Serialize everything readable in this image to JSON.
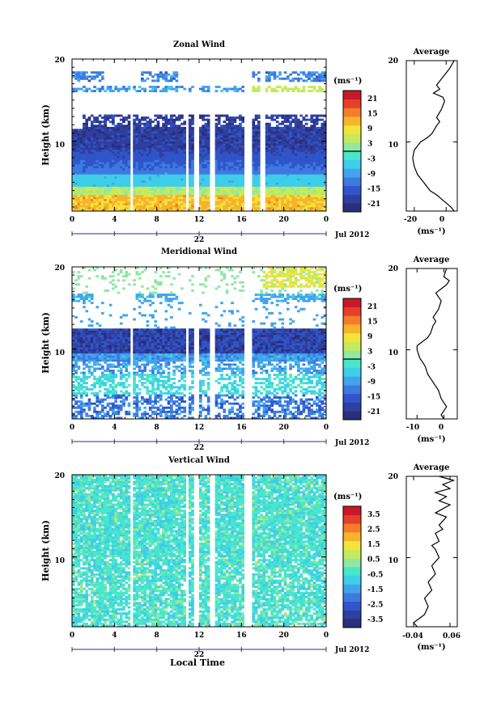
{
  "figure": {
    "x_axis_label": "Local Time",
    "x_ticks": [
      "0",
      "4",
      "8",
      "12",
      "16",
      "20",
      "0"
    ],
    "date_label": "22",
    "month_label": "Jul 2012",
    "y_axis_label": "Height (km)",
    "y_ticks": [
      "",
      "10",
      "20"
    ],
    "unit_label": "(ms⁻¹)"
  },
  "colormap": [
    "#2a2f7a",
    "#2f3fa0",
    "#2f55c8",
    "#3f78e0",
    "#42a4ec",
    "#3fcde8",
    "#48e6cc",
    "#8fe9a0",
    "#c5ea5c",
    "#f2e43a",
    "#f7b32c",
    "#f47d2a",
    "#e53f2c",
    "#c8182a"
  ],
  "chart_data": [
    {
      "type": "heatmap",
      "title": "Zonal Wind",
      "xlabel": "",
      "ylabel": "Height (km)",
      "xlim": [
        0,
        24
      ],
      "ylim": [
        1.5,
        20
      ],
      "colorbar_ticks": [
        "21",
        "15",
        "9",
        "3",
        "-3",
        "-9",
        "-15",
        "-21"
      ],
      "colorbar_range": [
        -24,
        24
      ],
      "data_gaps_hours": [
        [
          5.5,
          5.8
        ],
        [
          10.7,
          11.0
        ],
        [
          11.5,
          12.0
        ],
        [
          13.1,
          13.6
        ],
        [
          16.2,
          16.9
        ],
        [
          17.8,
          18.2
        ]
      ],
      "profile": {
        "type": "line",
        "title": "Average",
        "xlabel": "(ms⁻¹)",
        "x_ticks": [
          "-20",
          "0"
        ],
        "xlim": [
          -25,
          7
        ],
        "ylim": [
          1.5,
          20
        ],
        "x": [
          5,
          3,
          0,
          -3,
          -6,
          -10,
          -14,
          -18,
          -20,
          -21,
          -20,
          -16,
          -12,
          -9,
          -6,
          -4,
          -6,
          -3,
          -1,
          -2,
          -8,
          -4,
          -6,
          -2,
          2,
          5
        ],
        "y": [
          1.5,
          2,
          2.5,
          3,
          3.5,
          4,
          5,
          6,
          7,
          8,
          9,
          10,
          10.5,
          11,
          12,
          12.5,
          13,
          14,
          15,
          15.5,
          16,
          16.5,
          17,
          18,
          19,
          20
        ]
      }
    },
    {
      "type": "heatmap",
      "title": "Meridional Wind",
      "xlabel": "",
      "ylabel": "Height (km)",
      "xlim": [
        0,
        24
      ],
      "ylim": [
        1.5,
        20
      ],
      "colorbar_ticks": [
        "21",
        "15",
        "9",
        "3",
        "-3",
        "-9",
        "-15",
        "-21"
      ],
      "colorbar_range": [
        -24,
        24
      ],
      "data_gaps_hours": [
        [
          5.5,
          5.8
        ],
        [
          10.7,
          11.0
        ],
        [
          11.5,
          12.0
        ],
        [
          13.1,
          13.6
        ],
        [
          16.2,
          16.9
        ]
      ],
      "profile": {
        "type": "line",
        "title": "Average",
        "xlabel": "(ms⁻¹)",
        "x_ticks": [
          "-10",
          "0"
        ],
        "xlim": [
          -14,
          5
        ],
        "ylim": [
          1.5,
          20
        ],
        "x": [
          0,
          -1,
          1,
          -1,
          -2,
          -4,
          -6,
          -7,
          -9,
          -10,
          -10,
          -8,
          -6,
          -5,
          -4,
          -3,
          -4,
          -2,
          -1,
          -2,
          -3,
          -1,
          1,
          2,
          0,
          1
        ],
        "y": [
          1.5,
          2,
          3,
          4,
          5,
          6,
          7,
          8,
          9,
          10,
          10.5,
          11,
          11.5,
          12,
          13,
          13.5,
          14,
          15,
          16,
          16.5,
          17,
          17.5,
          18,
          18.5,
          19,
          20
        ]
      }
    },
    {
      "type": "heatmap",
      "title": "Vertical Wind",
      "xlabel": "Local Time",
      "ylabel": "Height (km)",
      "xlim": [
        0,
        24
      ],
      "ylim": [
        1.5,
        20
      ],
      "colorbar_ticks": [
        "3.5",
        "2.5",
        "1.5",
        "0.5",
        "-0.5",
        "-1.5",
        "-2.5",
        "-3.5"
      ],
      "colorbar_range": [
        -4,
        4
      ],
      "data_gaps_hours": [
        [
          5.5,
          5.8
        ],
        [
          10.7,
          11.0
        ],
        [
          11.5,
          12.0
        ],
        [
          13.1,
          13.6
        ],
        [
          16.2,
          16.9
        ]
      ],
      "profile": {
        "type": "line",
        "title": "Average",
        "xlabel": "(ms⁻¹)",
        "x_ticks": [
          "-0.04",
          "0.06"
        ],
        "xlim": [
          -0.06,
          0.08
        ],
        "ylim": [
          1.5,
          20
        ],
        "x": [
          -0.03,
          -0.04,
          -0.01,
          0.0,
          -0.01,
          0.01,
          0.0,
          0.02,
          0.01,
          0.03,
          0.02,
          0.01,
          0.03,
          0.02,
          0.04,
          0.03,
          0.05,
          0.02,
          0.04,
          0.06,
          0.03,
          0.05,
          0.02,
          0.06,
          0.04,
          0.07,
          0.03
        ],
        "y": [
          1.5,
          2,
          3,
          4,
          5,
          6,
          7,
          8,
          9,
          10,
          11,
          11.5,
          12,
          13,
          13.5,
          14,
          15,
          15.5,
          16,
          16.5,
          17,
          17.5,
          18,
          18.5,
          19,
          19.5,
          20
        ]
      }
    }
  ]
}
